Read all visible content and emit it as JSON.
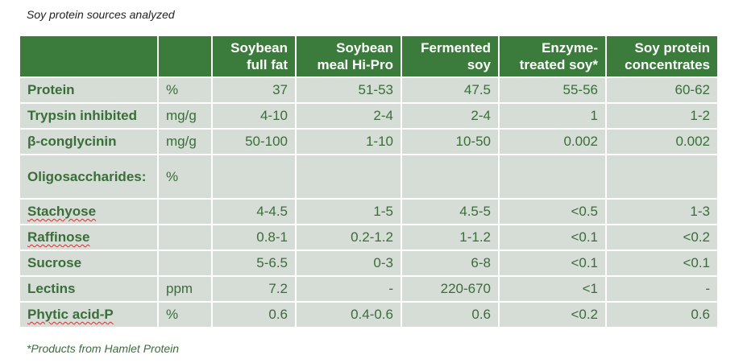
{
  "caption": "Soy protein sources analyzed",
  "columns": [
    {
      "line1": "Soybean",
      "line2": "full fat"
    },
    {
      "line1": "Soybean",
      "line2": "meal Hi-Pro"
    },
    {
      "line1": "Fermented",
      "line2": "soy"
    },
    {
      "line1": "Enzyme-",
      "line2": "treated soy*"
    },
    {
      "line1": "Soy protein",
      "line2": "concentrates"
    }
  ],
  "rows": [
    {
      "label": "Protein",
      "unit": "%",
      "values": [
        "37",
        "51-53",
        "47.5",
        "55-56",
        "60-62"
      ]
    },
    {
      "label": "Trypsin inhibited",
      "unit": "mg/g",
      "values": [
        "4-10",
        "2-4",
        "2-4",
        "1",
        "1-2"
      ]
    },
    {
      "label": "β-conglycinin",
      "unit": "mg/g",
      "values": [
        "50-100",
        "1-10",
        "10-50",
        "0.002",
        "0.002"
      ]
    },
    {
      "label": "Oligosaccharides:",
      "unit": "%",
      "values": [
        "",
        "",
        "",
        "",
        ""
      ]
    },
    {
      "label": "Stachyose",
      "unit": "",
      "values": [
        "4-4.5",
        "1-5",
        "4.5-5",
        "<0.5",
        "1-3"
      ]
    },
    {
      "label": "Raffinose",
      "unit": "",
      "values": [
        "0.8-1",
        "0.2-1.2",
        "1-1.2",
        "<0.1",
        "<0.2"
      ]
    },
    {
      "label": "Sucrose",
      "unit": "",
      "values": [
        "5-6.5",
        "0-3",
        "6-8",
        "<0.1",
        "<0.1"
      ]
    },
    {
      "label": "Lectins",
      "unit": "ppm",
      "values": [
        "7.2",
        "-",
        "220-670",
        "<1",
        "-"
      ]
    },
    {
      "label": "Phytic acid-P",
      "unit": "%",
      "values": [
        "0.6",
        "0.4-0.6",
        "0.6",
        "<0.2",
        "0.6"
      ]
    }
  ],
  "footnote": "*Products from Hamlet Protein"
}
